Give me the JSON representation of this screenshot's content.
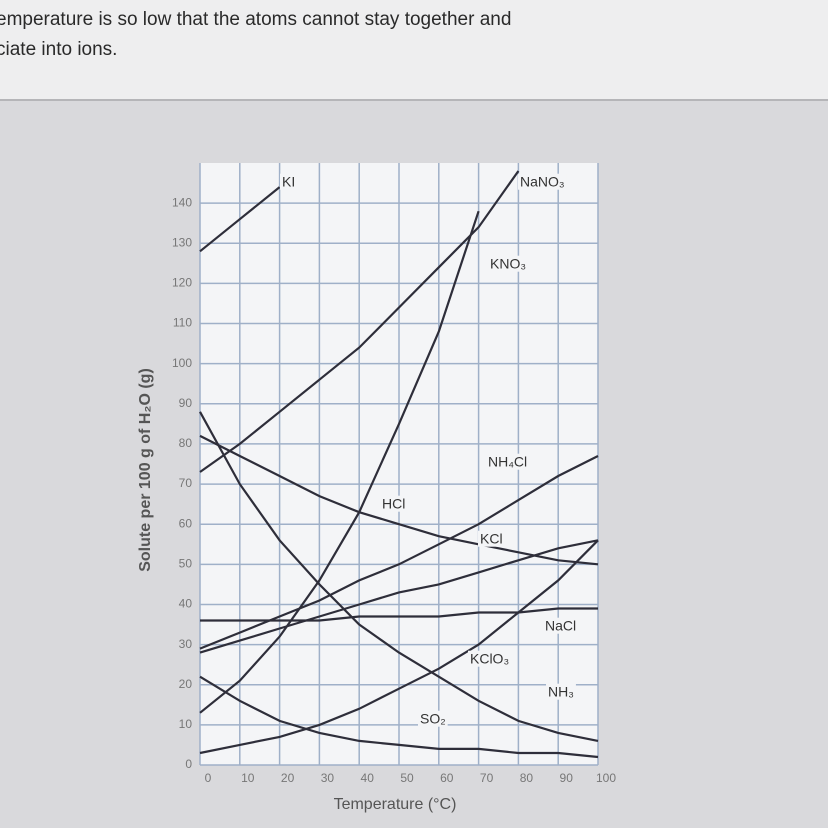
{
  "page_text": [
    "emperature is so low that the atoms cannot stay together and",
    "ciate into ions."
  ],
  "chart_data": {
    "type": "line",
    "xlabel": "Temperature (°C)",
    "ylabel": "Solute per 100 g of H₂O (g)",
    "x": [
      0,
      10,
      20,
      30,
      40,
      50,
      60,
      70,
      80,
      90,
      100
    ],
    "xlim": [
      0,
      100
    ],
    "xticks": [
      0,
      10,
      20,
      30,
      40,
      50,
      60,
      70,
      80,
      90,
      100
    ],
    "ylim": [
      0,
      150
    ],
    "yticks": [
      0,
      10,
      20,
      30,
      40,
      50,
      60,
      70,
      80,
      90,
      100,
      110,
      120,
      130,
      140
    ],
    "grid": true,
    "series": [
      {
        "name": "KI",
        "color": "#2e2e3a",
        "values": [
          128,
          136,
          144,
          null,
          null,
          null,
          null,
          null,
          null,
          null,
          null
        ]
      },
      {
        "name": "NaNO₃",
        "color": "#2e2e3a",
        "values": [
          73,
          80,
          88,
          96,
          104,
          114,
          124,
          134,
          148,
          null,
          null
        ]
      },
      {
        "name": "KNO₃",
        "color": "#2e2e3a",
        "values": [
          13,
          21,
          32,
          46,
          63,
          85,
          108,
          138,
          null,
          null,
          null
        ]
      },
      {
        "name": "NH₄Cl",
        "color": "#2e2e3a",
        "values": [
          29,
          33,
          37,
          41,
          46,
          50,
          55,
          60,
          66,
          72,
          77
        ]
      },
      {
        "name": "HCl",
        "color": "#2e2e3a",
        "values": [
          82,
          77,
          72,
          67,
          63,
          60,
          57,
          55,
          53,
          51,
          50
        ]
      },
      {
        "name": "KCl",
        "color": "#2e2e3a",
        "values": [
          28,
          31,
          34,
          37,
          40,
          43,
          45,
          48,
          51,
          54,
          56
        ]
      },
      {
        "name": "NaCl",
        "color": "#2e2e3a",
        "values": [
          36,
          36,
          36,
          36,
          37,
          37,
          37,
          38,
          38,
          39,
          39
        ]
      },
      {
        "name": "KClO₃",
        "color": "#2e2e3a",
        "values": [
          3,
          5,
          7,
          10,
          14,
          19,
          24,
          30,
          38,
          46,
          56
        ]
      },
      {
        "name": "NH₃",
        "color": "#2e2e3a",
        "values": [
          88,
          70,
          56,
          45,
          35,
          28,
          22,
          16,
          11,
          8,
          6
        ]
      },
      {
        "name": "SO₂",
        "color": "#2e2e3a",
        "values": [
          22,
          16,
          11,
          8,
          6,
          5,
          4,
          4,
          3,
          3,
          2
        ]
      }
    ]
  }
}
